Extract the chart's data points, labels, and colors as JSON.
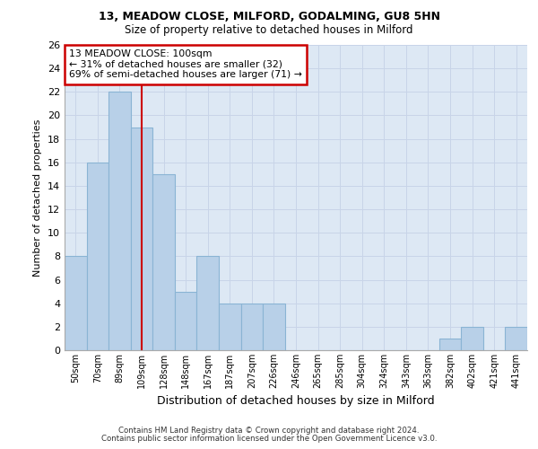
{
  "title1": "13, MEADOW CLOSE, MILFORD, GODALMING, GU8 5HN",
  "title2": "Size of property relative to detached houses in Milford",
  "xlabel": "Distribution of detached houses by size in Milford",
  "ylabel": "Number of detached properties",
  "categories": [
    "50sqm",
    "70sqm",
    "89sqm",
    "109sqm",
    "128sqm",
    "148sqm",
    "167sqm",
    "187sqm",
    "207sqm",
    "226sqm",
    "246sqm",
    "265sqm",
    "285sqm",
    "304sqm",
    "324sqm",
    "343sqm",
    "363sqm",
    "382sqm",
    "402sqm",
    "421sqm",
    "441sqm"
  ],
  "values": [
    8,
    16,
    22,
    19,
    15,
    5,
    8,
    4,
    4,
    4,
    0,
    0,
    0,
    0,
    0,
    0,
    0,
    1,
    2,
    0,
    2
  ],
  "bar_color": "#b8d0e8",
  "bar_edge_color": "#8ab4d4",
  "vline_x": 3.0,
  "vline_color": "#cc0000",
  "annotation_line1": "13 MEADOW CLOSE: 100sqm",
  "annotation_line2": "← 31% of detached houses are smaller (32)",
  "annotation_line3": "69% of semi-detached houses are larger (71) →",
  "annotation_box_color": "#cc0000",
  "ylim": [
    0,
    26
  ],
  "yticks": [
    0,
    2,
    4,
    6,
    8,
    10,
    12,
    14,
    16,
    18,
    20,
    22,
    24,
    26
  ],
  "grid_color": "#c8d4e8",
  "background_color": "#dde8f4",
  "footer1": "Contains HM Land Registry data © Crown copyright and database right 2024.",
  "footer2": "Contains public sector information licensed under the Open Government Licence v3.0."
}
